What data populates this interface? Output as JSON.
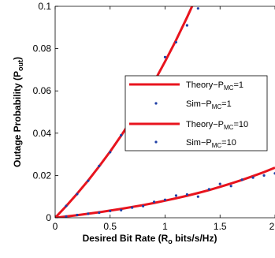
{
  "chart_data": {
    "type": "line",
    "xlabel": "Desired Bit Rate (R_o bits/s/Hz)",
    "ylabel": "Outage Probability (P_out)",
    "xlim": [
      0,
      2
    ],
    "ylim": [
      0,
      0.1
    ],
    "xticks": [
      0,
      0.5,
      1,
      1.5,
      2
    ],
    "yticks": [
      0,
      0.02,
      0.04,
      0.06,
      0.08,
      0.1
    ],
    "xtick_labels": [
      "0",
      "0.5",
      "1",
      "1.5",
      "2"
    ],
    "ytick_labels": [
      "0",
      "0.02",
      "0.04",
      "0.06",
      "0.08",
      "0.1"
    ],
    "grid": false,
    "legend_position": "right",
    "series": [
      {
        "name": "Theory−P_MC=1",
        "style": "line",
        "color": "#e8141e",
        "x": [
          0,
          0.1,
          0.2,
          0.3,
          0.4,
          0.5,
          0.6,
          0.7,
          0.8,
          0.9,
          1.0,
          1.1,
          1.2,
          1.3,
          1.39
        ],
        "y": [
          0,
          0.0055,
          0.0114,
          0.0176,
          0.0243,
          0.0313,
          0.0388,
          0.0468,
          0.0553,
          0.0643,
          0.0739,
          0.084,
          0.0948,
          0.1062,
          0.117
        ]
      },
      {
        "name": "Sim−P_MC=1",
        "style": "markers",
        "color": "#1f3fa6",
        "x": [
          0.1,
          0.2,
          0.3,
          0.4,
          0.5,
          0.6,
          0.7,
          0.8,
          0.9,
          1.0,
          1.1,
          1.2,
          1.3,
          1.4
        ],
        "y": [
          0.0056,
          0.0112,
          0.0175,
          0.0245,
          0.031,
          0.039,
          0.0465,
          0.0555,
          0.066,
          0.076,
          0.083,
          0.091,
          0.099,
          0.101
        ]
      },
      {
        "name": "Theory−P_MC=10",
        "style": "line",
        "color": "#e8141e",
        "x": [
          0,
          0.1,
          0.2,
          0.3,
          0.4,
          0.5,
          0.6,
          0.7,
          0.8,
          0.9,
          1.0,
          1.1,
          1.2,
          1.3,
          1.4,
          1.5,
          1.6,
          1.7,
          1.8,
          1.9,
          2.0
        ],
        "y": [
          0,
          0.0006,
          0.0012,
          0.0019,
          0.0026,
          0.0034,
          0.0042,
          0.0051,
          0.006,
          0.007,
          0.0081,
          0.0092,
          0.0104,
          0.0117,
          0.0131,
          0.0146,
          0.0162,
          0.0179,
          0.0197,
          0.0216,
          0.0237
        ]
      },
      {
        "name": "Sim−P_MC=10",
        "style": "markers",
        "color": "#1f3fa6",
        "x": [
          0.1,
          0.2,
          0.3,
          0.4,
          0.5,
          0.6,
          0.7,
          0.8,
          0.9,
          1.0,
          1.1,
          1.2,
          1.3,
          1.4,
          1.5,
          1.6,
          1.7,
          1.8,
          1.9,
          2.0
        ],
        "y": [
          0.0006,
          0.0013,
          0.0019,
          0.0024,
          0.0032,
          0.0036,
          0.0048,
          0.0055,
          0.0075,
          0.0085,
          0.0105,
          0.011,
          0.01,
          0.0135,
          0.016,
          0.015,
          0.018,
          0.019,
          0.02,
          0.021
        ]
      }
    ]
  },
  "legend": {
    "entries": [
      {
        "base": "Theory−P",
        "sub": "MC",
        "tail": "=1"
      },
      {
        "base": "Sim−P",
        "sub": "MC",
        "tail": "=1"
      },
      {
        "base": "Theory−P",
        "sub": "MC",
        "tail": "=10"
      },
      {
        "base": "Sim−P",
        "sub": "MC",
        "tail": "=10"
      }
    ]
  },
  "labels": {
    "x": {
      "base": "Desired Bit Rate (R",
      "sub": "o",
      "tail": " bits/s/Hz)"
    },
    "y": {
      "base": "Outage Probability (P",
      "sub": "out",
      "tail": ")"
    }
  }
}
